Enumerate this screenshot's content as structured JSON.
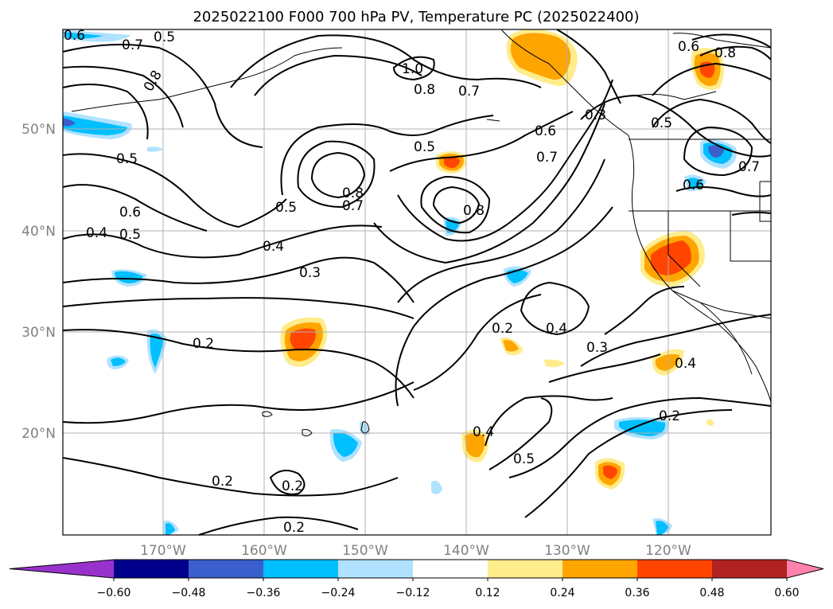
{
  "title": "2025022100 F000 700 hPa PV, Temperature PC (2025022400)",
  "longitude_labels": [
    "170°W",
    "160°W",
    "150°W",
    "140°W",
    "130°W",
    "120°W"
  ],
  "latitude_labels": [
    "50°N",
    "40°N",
    "30°N",
    "20°N"
  ],
  "contour_labels": [
    "0.6",
    "0.5",
    "0.7",
    "0.8",
    "1.0",
    "0.8",
    "0.7",
    "0.5",
    "0.6",
    "0.3",
    "0.5",
    "0.8",
    "0.7",
    "0.5",
    "0.4",
    "0.3",
    "0.2",
    "0.4",
    "0.3",
    "0.2",
    "0.4",
    "0.5",
    "0.2",
    "0.2",
    "0.2",
    "0.6",
    "0.8",
    "0.7",
    "0.5",
    "0.5",
    "0.6",
    "0.4",
    "0.8",
    "0.6",
    "0.7",
    "0.4",
    "0.2"
  ],
  "colorbar": {
    "ticks": [
      "−0.60",
      "−0.48",
      "−0.36",
      "−0.24",
      "−0.12",
      "0.12",
      "0.24",
      "0.36",
      "0.48",
      "0.60"
    ],
    "colors": [
      "#9932cc",
      "#00008b",
      "#3a5fcd",
      "#00bfff",
      "#b0e2ff",
      "#ffffff",
      "#ffec8b",
      "#ffa500",
      "#ff4500",
      "#b22222",
      "#ff82ab"
    ]
  }
}
